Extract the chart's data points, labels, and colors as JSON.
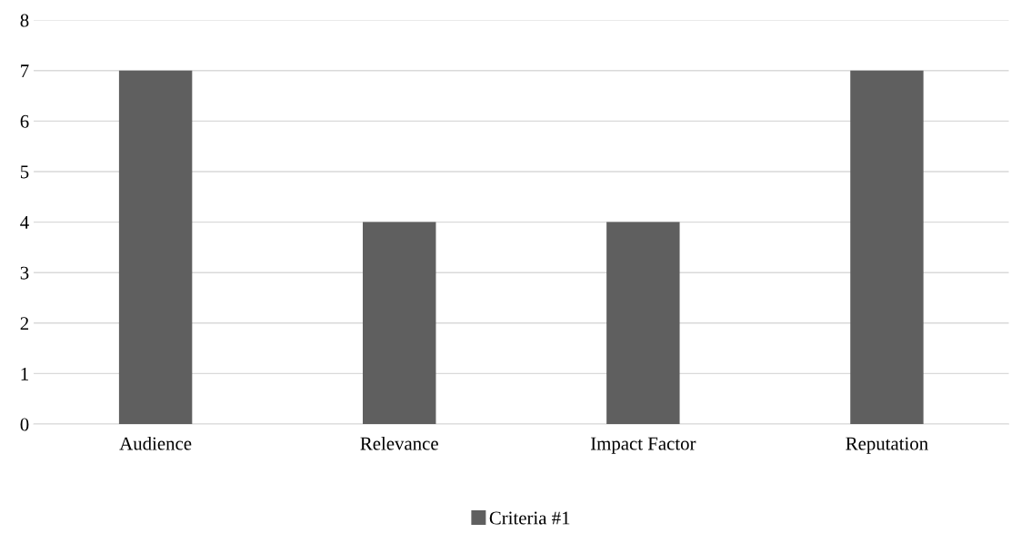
{
  "chart_data": {
    "type": "bar",
    "categories": [
      "Audience",
      "Relevance",
      "Impact Factor",
      "Reputation"
    ],
    "series": [
      {
        "name": "Criteria #1",
        "color": "#5f5f5f",
        "values": [
          7,
          4,
          4,
          7
        ]
      }
    ],
    "ylim": [
      0,
      8
    ],
    "yticks": [
      0,
      1,
      2,
      3,
      4,
      5,
      6,
      7,
      8
    ],
    "grid": "y",
    "legend": "bottom"
  }
}
